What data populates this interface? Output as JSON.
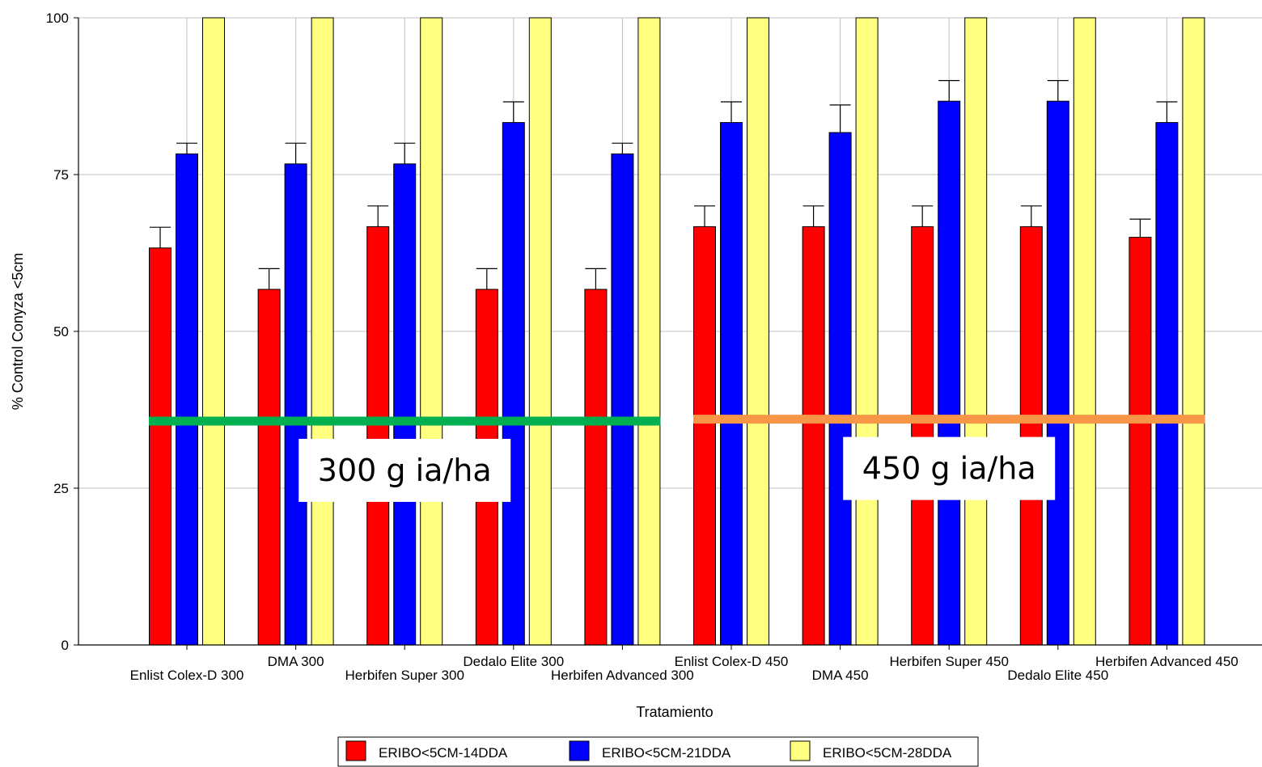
{
  "chart_data": {
    "type": "bar",
    "title": "",
    "xlabel": "Tratamiento",
    "ylabel": "% Control Conyza <5cm",
    "ylim": [
      0,
      100
    ],
    "yticks": [
      "0",
      "25",
      "50",
      "75",
      "100"
    ],
    "grid": "vertical and horizontal gridlines",
    "legend_position": "bottom",
    "categories": [
      "Enlist Colex-D 300",
      "DMA 300",
      "Herbifen Super 300",
      "Dedalo Elite 300",
      "Herbifen Advanced 300",
      "Enlist Colex-D 450",
      "DMA 450",
      "Herbifen Super 450",
      "Dedalo Elite 450",
      "Herbifen Advanced 450"
    ],
    "series": [
      {
        "name": "ERIBO<5CM-14DDA",
        "color": "#ff0000",
        "values": [
          63.3,
          56.7,
          66.7,
          56.7,
          56.7,
          66.7,
          66.7,
          66.7,
          66.7,
          65.0
        ],
        "errors": [
          3.3,
          3.3,
          3.3,
          3.3,
          3.3,
          3.3,
          3.3,
          3.3,
          3.3,
          2.9
        ]
      },
      {
        "name": "ERIBO<5CM-21DDA",
        "color": "#0000ff",
        "values": [
          78.3,
          76.7,
          76.7,
          83.3,
          78.3,
          83.3,
          81.7,
          86.7,
          86.7,
          83.3
        ],
        "errors": [
          1.7,
          3.3,
          3.3,
          3.3,
          1.7,
          3.3,
          4.4,
          3.3,
          3.3,
          3.3
        ]
      },
      {
        "name": "ERIBO<5CM-28DDA",
        "color": "#ffff80",
        "values": [
          100,
          100,
          100,
          100,
          100,
          100,
          100,
          100,
          100,
          100
        ],
        "errors": [
          0,
          0,
          0,
          0,
          0,
          0,
          0,
          0,
          0,
          0
        ]
      }
    ],
    "dose_groups": [
      {
        "label": "300 g ia/ha",
        "color": "#00b050",
        "line_y": 35.7,
        "from_category": 0,
        "to_category": 4
      },
      {
        "label": "450 g ia/ha",
        "color": "#f79646",
        "line_y": 36.0,
        "from_category": 5,
        "to_category": 9
      }
    ]
  }
}
